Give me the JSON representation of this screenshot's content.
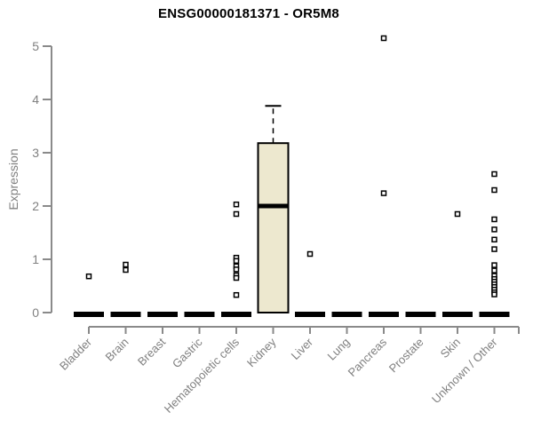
{
  "chart_data": {
    "type": "boxplot",
    "title": "ENSG00000181371 - OR5M8",
    "xlabel": "",
    "ylabel": "Expression",
    "ylim": [
      0,
      5
    ],
    "yticks": [
      0,
      1,
      2,
      3,
      4,
      5
    ],
    "grid": false,
    "legend": "none",
    "axis_color": "#8A8A8A",
    "label_color": "#808080",
    "box_fill_color": "#EDE8CF",
    "box_line_color": "#000000",
    "outlier_fill_color": "#FFFFFF",
    "categories": [
      "Bladder",
      "Brain",
      "Breast",
      "Gastric",
      "Hematopoietic cells",
      "Kidney",
      "Liver",
      "Lung",
      "Pancreas",
      "Prostate",
      "Skin",
      "Unknown / Other"
    ],
    "boxes": [
      {
        "category": "Bladder",
        "q1": 0,
        "median": 0,
        "q3": 0,
        "whisker_low": 0,
        "whisker_high": 0,
        "outliers": [
          0.68
        ]
      },
      {
        "category": "Brain",
        "q1": 0,
        "median": 0,
        "q3": 0,
        "whisker_low": 0,
        "whisker_high": 0,
        "outliers": [
          0.9,
          0.8
        ]
      },
      {
        "category": "Breast",
        "q1": 0,
        "median": 0,
        "q3": 0,
        "whisker_low": 0,
        "whisker_high": 0,
        "outliers": []
      },
      {
        "category": "Gastric",
        "q1": 0,
        "median": 0,
        "q3": 0,
        "whisker_low": 0,
        "whisker_high": 0,
        "outliers": []
      },
      {
        "category": "Hematopoietic cells",
        "q1": 0,
        "median": 0,
        "q3": 0,
        "whisker_low": 0,
        "whisker_high": 0,
        "outliers": [
          2.03,
          1.85,
          1.03,
          0.97,
          0.87,
          0.81,
          0.7,
          0.65,
          0.33
        ]
      },
      {
        "category": "Kidney",
        "q1": 0,
        "median": 2.0,
        "q3": 3.18,
        "whisker_low": 0,
        "whisker_high": 3.88,
        "outliers": []
      },
      {
        "category": "Liver",
        "q1": 0,
        "median": 0,
        "q3": 0,
        "whisker_low": 0,
        "whisker_high": 0,
        "outliers": [
          1.1
        ]
      },
      {
        "category": "Lung",
        "q1": 0,
        "median": 0,
        "q3": 0,
        "whisker_low": 0,
        "whisker_high": 0,
        "outliers": []
      },
      {
        "category": "Pancreas",
        "q1": 0,
        "median": 0,
        "q3": 0,
        "whisker_low": 0,
        "whisker_high": 0,
        "outliers": [
          5.15,
          2.24
        ]
      },
      {
        "category": "Prostate",
        "q1": 0,
        "median": 0,
        "q3": 0,
        "whisker_low": 0,
        "whisker_high": 0,
        "outliers": []
      },
      {
        "category": "Skin",
        "q1": 0,
        "median": 0,
        "q3": 0,
        "whisker_low": 0,
        "whisker_high": 0,
        "outliers": [
          1.85
        ]
      },
      {
        "category": "Unknown / Other",
        "q1": 0,
        "median": 0,
        "q3": 0,
        "whisker_low": 0,
        "whisker_high": 0,
        "outliers": [
          2.6,
          2.3,
          1.75,
          1.56,
          1.37,
          1.19,
          0.89,
          0.79,
          0.69,
          0.63,
          0.58,
          0.53,
          0.48,
          0.43,
          0.38,
          0.34
        ]
      }
    ]
  }
}
